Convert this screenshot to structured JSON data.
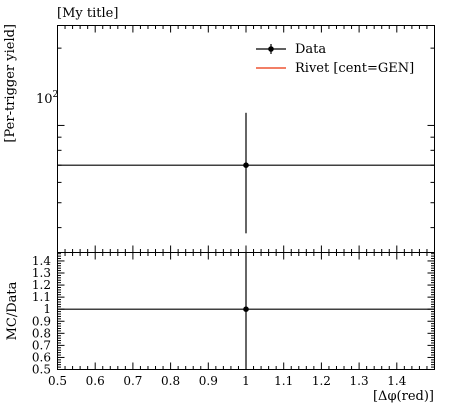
{
  "chart_data": [
    {
      "type": "scatter",
      "title": "[My title]",
      "ylabel": "[Per-trigger yield]",
      "xlabel": "",
      "xlim": [
        0.5,
        1.5
      ],
      "ylog": true,
      "ytick_labels": [
        "10",
        "2"
      ],
      "legend_position": "top-right",
      "series": [
        {
          "name": "Data",
          "style": "points-with-errorbars",
          "color": "#000000",
          "x": [
            1.0
          ],
          "y": [
            70
          ],
          "yerr_low": [
            32
          ],
          "yerr_high": [
            42
          ],
          "xerr": [
            0.5
          ]
        },
        {
          "name": "Rivet [cent=GEN]",
          "style": "line",
          "color": "#ee5533",
          "x": [],
          "y": []
        }
      ]
    },
    {
      "type": "scatter",
      "ylabel": "MC/Data",
      "xlabel": "[Δφ(red)]",
      "xlim": [
        0.5,
        1.5
      ],
      "ylim": [
        0.5,
        1.47
      ],
      "xticks": [
        "0.5",
        "0.6",
        "0.7",
        "0.8",
        "0.9",
        "1",
        "1.1",
        "1.2",
        "1.3",
        "1.4"
      ],
      "yticks": [
        "0.5",
        "0.6",
        "0.7",
        "0.8",
        "0.9",
        "1",
        "1.1",
        "1.2",
        "1.3",
        "1.4"
      ],
      "reference_line": 1.0,
      "series": [
        {
          "name": "",
          "style": "points-with-errorbars",
          "color": "#000000",
          "x": [
            1.0
          ],
          "y": [
            1.0
          ],
          "yerr_low": [
            0.5
          ],
          "yerr_high": [
            0.47
          ],
          "xerr": [
            0.5
          ]
        }
      ]
    }
  ]
}
